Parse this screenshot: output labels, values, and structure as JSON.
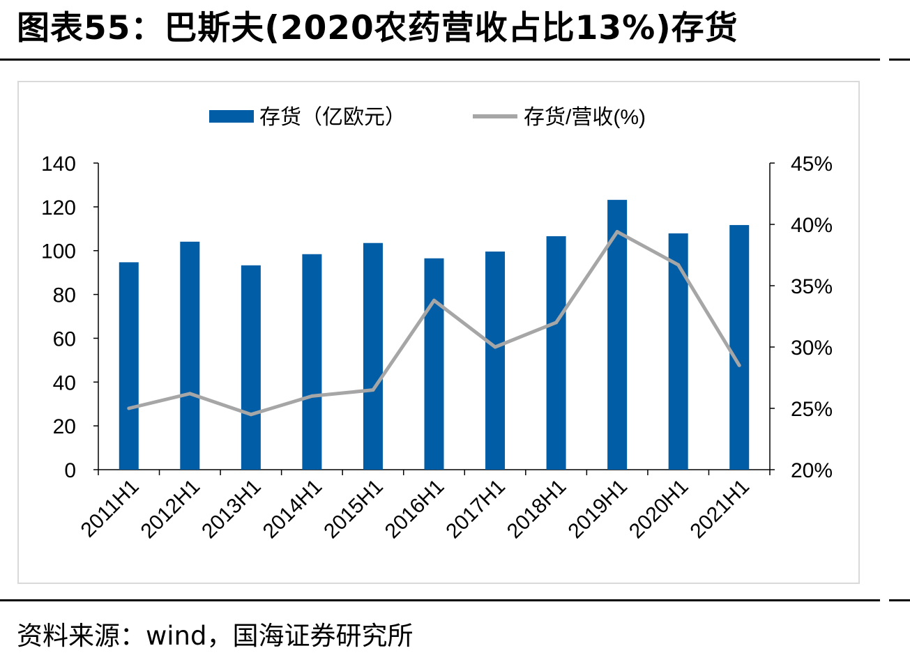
{
  "header": {
    "title": "图表55：巴斯夫(2020农药营收占比13%)存货"
  },
  "footer": {
    "source": "资料来源：wind，国海证券研究所"
  },
  "chart_data": {
    "type": "bar",
    "categories": [
      "2011H1",
      "2012H1",
      "2013H1",
      "2014H1",
      "2015H1",
      "2016H1",
      "2017H1",
      "2018H1",
      "2019H1",
      "2020H1",
      "2021H1"
    ],
    "series": [
      {
        "name": "存货（亿欧元）",
        "type": "bar",
        "axis": "left",
        "color": "#005da6",
        "values": [
          94.7,
          104.1,
          93.3,
          98.4,
          103.5,
          96.5,
          99.6,
          106.6,
          123.2,
          107.9,
          111.7
        ]
      },
      {
        "name": "存货/营收(%)",
        "type": "line",
        "axis": "right",
        "color": "#a6a6a6",
        "values": [
          25.0,
          26.2,
          24.5,
          26.0,
          26.5,
          33.8,
          30.0,
          32.0,
          39.4,
          36.7,
          28.5
        ]
      }
    ],
    "y_left": {
      "lim": [
        0,
        140
      ],
      "ticks": [
        "0",
        "20",
        "40",
        "60",
        "80",
        "100",
        "120",
        "140"
      ]
    },
    "y_right": {
      "lim": [
        20,
        45
      ],
      "ticks": [
        "20%",
        "25%",
        "30%",
        "35%",
        "40%",
        "45%"
      ]
    },
    "legend": "top-center",
    "grid": false
  }
}
